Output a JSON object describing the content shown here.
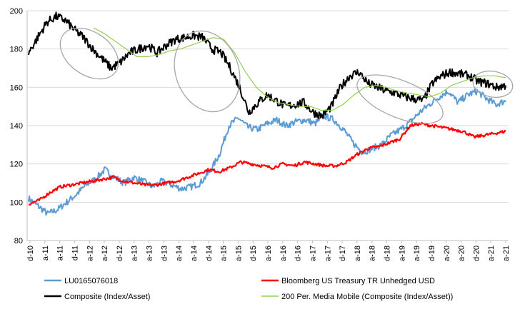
{
  "chart_data": {
    "type": "line",
    "title": "",
    "xlabel": "",
    "ylabel": "",
    "ylim": [
      80,
      200
    ],
    "yticks": [
      80,
      100,
      120,
      140,
      160,
      180,
      200
    ],
    "grid": "horizontal",
    "legend_position": "bottom",
    "x_tick_labels": [
      "d-10",
      "a-11",
      "a-11",
      "d-11",
      "a-12",
      "a-12",
      "d-12",
      "a-13",
      "a-13",
      "d-13",
      "a-14",
      "a-14",
      "d-14",
      "a-15",
      "a-15",
      "d-15",
      "a-16",
      "a-16",
      "d-16",
      "a-17",
      "a-17",
      "d-17",
      "a-18",
      "a-18",
      "d-18",
      "a-19",
      "a-19",
      "d-19",
      "a-20",
      "a-20",
      "d-20",
      "a-21",
      "a-21"
    ],
    "series": [
      {
        "name": "LU0165076018",
        "color": "#5B9BD5",
        "width": 2,
        "values": [
          102,
          98,
          94,
          96,
          100,
          104,
          109,
          112,
          117,
          113,
          110,
          113,
          111,
          108,
          111,
          109,
          107,
          108,
          110,
          116,
          125,
          140,
          144,
          139,
          138,
          141,
          143,
          140,
          142,
          143,
          141,
          145,
          143,
          138,
          131,
          126,
          128,
          130,
          135,
          138,
          142,
          147,
          151,
          155,
          158,
          152,
          156,
          158,
          154,
          151,
          153
        ]
      },
      {
        "name": "Bloomberg US Treasury TR Unhedged USD",
        "color": "#FF0000",
        "width": 2.2,
        "values": [
          99,
          101,
          105,
          108,
          109,
          110,
          111,
          112,
          113,
          111,
          110,
          109,
          109,
          110,
          111,
          113,
          115,
          117,
          116,
          118,
          121,
          120,
          119,
          118,
          120,
          119,
          121,
          120,
          119,
          119,
          121,
          125,
          128,
          129,
          131,
          133,
          140,
          141,
          140,
          139,
          138,
          137,
          134,
          135,
          136,
          137
        ]
      },
      {
        "name": "Composite (Index/Asset)",
        "color": "#000000",
        "width": 2,
        "values": [
          178,
          186,
          194,
          197,
          195,
          190,
          186,
          180,
          175,
          170,
          173,
          178,
          180,
          182,
          178,
          182,
          185,
          186,
          187,
          186,
          180,
          178,
          170,
          160,
          147,
          152,
          156,
          153,
          150,
          151,
          152,
          147,
          145,
          150,
          160,
          166,
          168,
          162,
          160,
          158,
          157,
          155,
          154,
          153,
          162,
          166,
          168,
          167,
          166,
          163,
          162,
          160,
          161
        ]
      },
      {
        "name": "200 Per. Media Mobile (Composite (Index/Asset))",
        "color": "#92D050",
        "width": 1.2,
        "values": [
          null,
          null,
          null,
          null,
          null,
          null,
          191,
          188,
          184,
          180,
          176,
          176,
          177,
          179,
          180,
          182,
          184,
          186,
          185,
          178,
          168,
          160,
          155,
          152,
          151,
          150,
          150,
          148,
          148,
          151,
          156,
          160,
          161,
          160,
          158,
          157,
          156,
          155,
          157,
          161,
          163,
          165,
          166,
          166,
          165
        ]
      }
    ],
    "annotations": [
      {
        "type": "ellipse-highlight",
        "description_color": "#A6A6A6"
      }
    ]
  },
  "legend": {
    "items": [
      {
        "label": "LU0165076018",
        "color": "#5B9BD5"
      },
      {
        "label": "Bloomberg US Treasury TR Unhedged USD",
        "color": "#FF0000"
      },
      {
        "label": "Composite (Index/Asset)",
        "color": "#000000"
      },
      {
        "label": "200 Per. Media Mobile (Composite (Index/Asset))",
        "color": "#92D050"
      }
    ]
  },
  "colors": {
    "gridline": "#D9D9D9",
    "axis": "#BFBFBF",
    "highlight_ellipse": "#A6A6A6"
  }
}
